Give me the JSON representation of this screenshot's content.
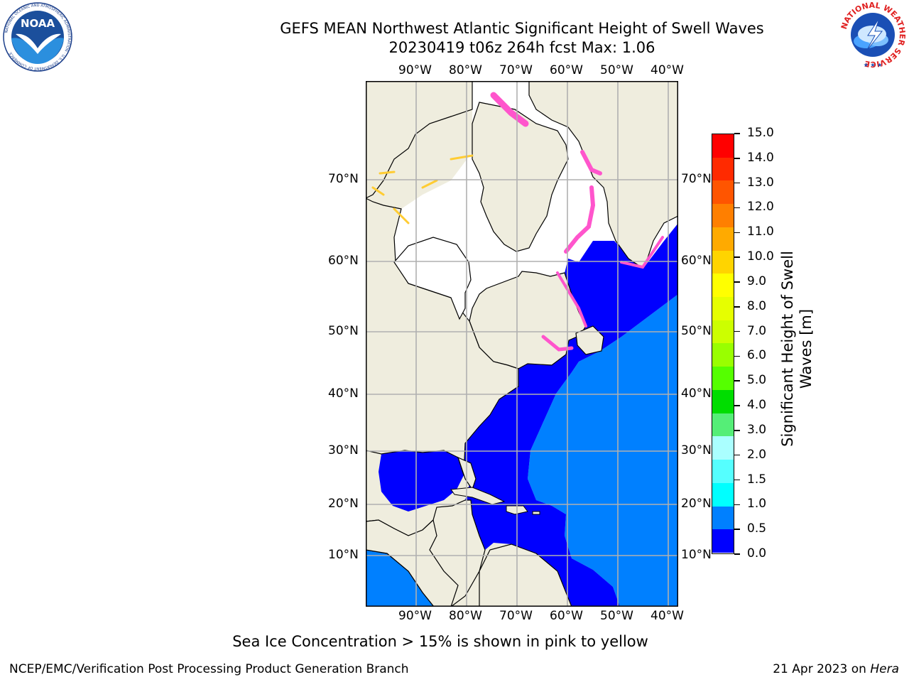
{
  "header": {
    "title_line1": "GEFS MEAN Northwest Atlantic Significant Height of Swell Waves",
    "title_line2": "20230419 t06z 264h fcst   Max: 1.06"
  },
  "logos": {
    "left": {
      "name": "NOAA",
      "ring_text": "NATIONAL OCEANIC AND ATMOSPHERIC ADMINISTRATION · U.S. DEPARTMENT OF COMMERCE"
    },
    "right": {
      "name": "NATIONAL WEATHER SERVICE"
    }
  },
  "map": {
    "lon_labels": [
      "90°W",
      "80°W",
      "70°W",
      "60°W",
      "50°W",
      "40°W"
    ],
    "lat_labels": [
      "70°N",
      "60°N",
      "50°N",
      "40°N",
      "30°N",
      "20°N",
      "10°N"
    ],
    "colors": {
      "land": "#efedde",
      "ice_free_white": "#ffffff",
      "swell_0": "#0000ff",
      "swell_05": "#0080ff",
      "grid": "#b0b0b0",
      "ice_pink": "#ff55cc"
    }
  },
  "colorbar": {
    "title_line1": "Significant Height of Swell",
    "title_line2": "Waves [m]",
    "tick_labels": [
      "15.0",
      "14.0",
      "13.0",
      "12.0",
      "11.0",
      "10.0",
      "9.0",
      "8.0",
      "7.0",
      "6.0",
      "5.0",
      "4.0",
      "3.0",
      "2.0",
      "1.5",
      "1.0",
      "0.5",
      "0.0"
    ],
    "colors_top_to_bottom": [
      "#ff0000",
      "#ff2a00",
      "#ff5500",
      "#ff7f00",
      "#ffaa00",
      "#ffd400",
      "#ffff00",
      "#e6ff00",
      "#ccff00",
      "#99ff00",
      "#55ff00",
      "#00dd00",
      "#55ee77",
      "#aaffff",
      "#55ffff",
      "#00ffff",
      "#0080ff",
      "#0000ff"
    ]
  },
  "caption": "Sea Ice Concentration > 15% is shown in pink to yellow",
  "footer": {
    "left": "NCEP/EMC/Verification Post Processing Product Generation Branch",
    "right_prefix": "21 Apr 2023 on ",
    "right_italic": "Hera"
  }
}
